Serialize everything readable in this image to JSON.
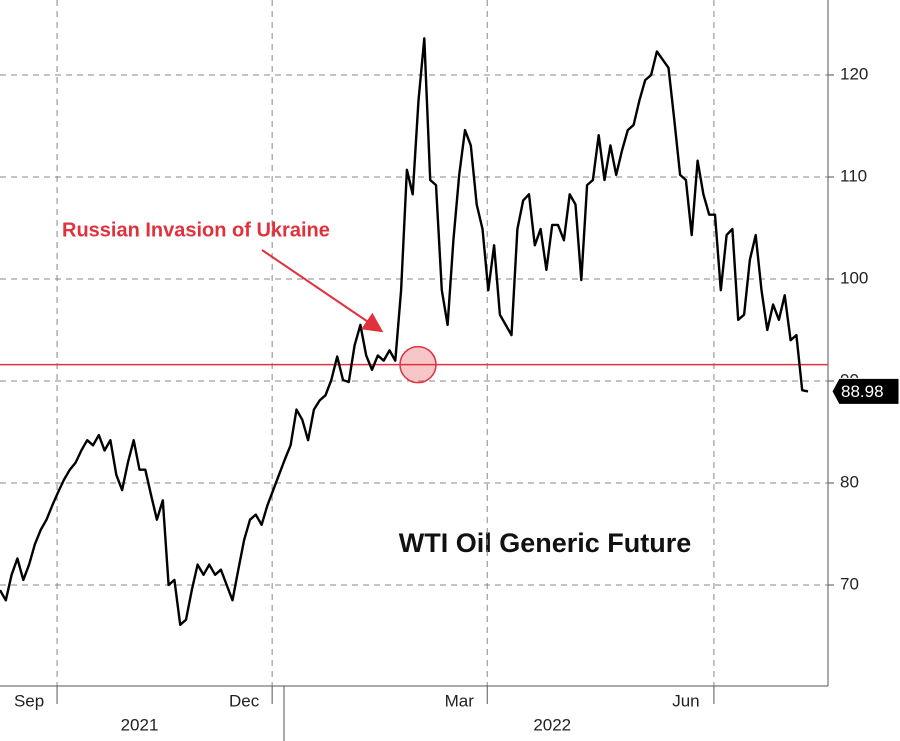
{
  "chart_data": {
    "type": "line",
    "title": "WTI Oil Generic Future",
    "annotation": "Russian Invasion of Ukraine",
    "annotation_color": "#e0313c",
    "reference_line": 91.6,
    "reference_color": "#e0313c",
    "grid": true,
    "ylim": [
      60.1,
      127.35
    ],
    "yticks": [
      70,
      80,
      90,
      100,
      110,
      120
    ],
    "categories": [
      null,
      null,
      null,
      null,
      null,
      "Sep",
      null,
      null,
      null,
      null,
      null,
      null,
      null,
      null,
      null,
      null,
      null,
      null,
      null,
      null,
      null,
      null,
      null,
      null,
      null,
      null,
      null,
      null,
      null,
      null,
      null,
      null,
      null,
      null,
      null,
      null,
      null,
      null,
      null,
      null,
      null,
      null,
      "Dec",
      null,
      null,
      null,
      null,
      null,
      null,
      null,
      null,
      null,
      null,
      null,
      null,
      null,
      null,
      null,
      null,
      null,
      null,
      null,
      null,
      null,
      null,
      null,
      null,
      null,
      null,
      null,
      null,
      null,
      null,
      null,
      null,
      null,
      null,
      null,
      null,
      "Mar",
      null,
      null,
      null,
      null,
      null,
      null,
      null,
      null,
      null,
      null,
      null,
      null,
      null,
      null,
      null,
      null,
      null,
      null,
      null,
      null,
      null,
      null,
      null,
      null,
      null,
      null,
      null,
      null,
      null,
      null,
      null,
      null,
      null,
      null,
      null,
      null,
      null,
      null,
      "Jun",
      null,
      null,
      null,
      null,
      null,
      null,
      null,
      null,
      null,
      null,
      null,
      null,
      null,
      null,
      null,
      null,
      null,
      null,
      null,
      null,
      null
    ],
    "x_group_labels": [
      null,
      null,
      null,
      null,
      null,
      null,
      null,
      null,
      null,
      null,
      null,
      null,
      null,
      null,
      null,
      null,
      null,
      null,
      null,
      null,
      null,
      null,
      null,
      null,
      "2021",
      null,
      null,
      null,
      null,
      null,
      null,
      null,
      null,
      null,
      null,
      null,
      null,
      null,
      null,
      null,
      null,
      null,
      null,
      null,
      null,
      null,
      null,
      null,
      null,
      null,
      null,
      null,
      null,
      null,
      null,
      null,
      null,
      null,
      null,
      null,
      null,
      null,
      null,
      null,
      null,
      null,
      null,
      null,
      null,
      null,
      null,
      null,
      null,
      null,
      null,
      null,
      null,
      null,
      null,
      null,
      null,
      null,
      null,
      null,
      null,
      null,
      null,
      null,
      null,
      null,
      null,
      null,
      null,
      null,
      null,
      "2022",
      null,
      null,
      null,
      null,
      null,
      null,
      null,
      null,
      null,
      null,
      null,
      null,
      null,
      null,
      null,
      null,
      null,
      null,
      null,
      null,
      null,
      null,
      null,
      null,
      null,
      null,
      null,
      null,
      null,
      null,
      null,
      null,
      null,
      null,
      null,
      null,
      null,
      null,
      null,
      null,
      null,
      null,
      null,
      null
    ],
    "series": [
      {
        "color": "#000000",
        "values": [
          69.5,
          68.5,
          71,
          72.6,
          70.5,
          72,
          74,
          75.4,
          76.4,
          77.8,
          79.1,
          80.3,
          81.3,
          82,
          83.2,
          84.2,
          83.7,
          84.7,
          83.2,
          84.2,
          80.8,
          79.3,
          82,
          84.2,
          81.3,
          81.3,
          78.8,
          76.4,
          78.3,
          70,
          70.5,
          66.1,
          66.6,
          69.5,
          72,
          71,
          72,
          71,
          71.5,
          70,
          68.5,
          71.5,
          74.4,
          76.4,
          76.9,
          75.9,
          77.8,
          79.3,
          80.8,
          82.3,
          83.7,
          87.2,
          86.2,
          84.2,
          87.2,
          88.1,
          88.6,
          90.1,
          92.4,
          90.1,
          89.9,
          93.5,
          95.5,
          92.5,
          91.1,
          92.5,
          92,
          93,
          92,
          98.9,
          110.7,
          108.3,
          117.5,
          123.6,
          109.7,
          109.2,
          98.9,
          95.5,
          103.8,
          110.2,
          114.6,
          113.1,
          107.3,
          104.9,
          98.9,
          103.3,
          96.5,
          95.5,
          94.5,
          104.9,
          107.7,
          108.3,
          103.3,
          104.9,
          100.9,
          105.3,
          105.3,
          103.8,
          108.3,
          107.3,
          99.9,
          109.2,
          109.7,
          114.1,
          109.7,
          113.1,
          110.2,
          112.6,
          114.6,
          115.1,
          117.5,
          119.5,
          120,
          122.3,
          121.5,
          120.7,
          115.6,
          110.2,
          109.7,
          104.3,
          111.6,
          108.3,
          106.3,
          106.3,
          98.9,
          104.3,
          104.9,
          96,
          96.5,
          101.9,
          104.3,
          98.9,
          95,
          97.5,
          96,
          98.4,
          94,
          94.5,
          89.1,
          88.98
        ]
      }
    ]
  }
}
